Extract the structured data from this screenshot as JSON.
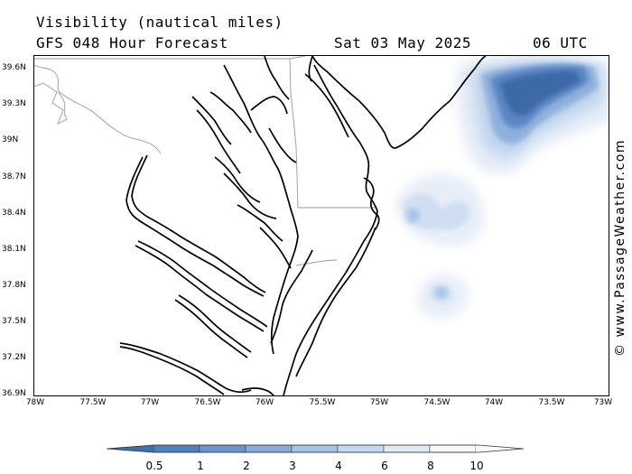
{
  "header": {
    "title": "Visibility (nautical miles)",
    "subtitle": "GFS 048 Hour Forecast",
    "date": "Sat 03 May 2025",
    "time": "06 UTC"
  },
  "credit": "© www.PassageWeather.com",
  "axes": {
    "lat_labels": [
      "39.6N",
      "39.3N",
      "39N",
      "38.7N",
      "38.4N",
      "38.1N",
      "37.8N",
      "37.5N",
      "37.2N",
      "36.9N"
    ],
    "lon_labels": [
      "78W",
      "77.5W",
      "77W",
      "76.5W",
      "76W",
      "75.5W",
      "75W",
      "74.5W",
      "74W",
      "73.5W",
      "73W"
    ]
  },
  "colorbar": {
    "labels": [
      "0.5",
      "1",
      "2",
      "3",
      "4",
      "6",
      "8",
      "10"
    ],
    "colors": [
      "#3f6fae",
      "#4f7fbf",
      "#6a96cf",
      "#88acdb",
      "#a6c2e6",
      "#c6d8ef",
      "#e1eaf6",
      "#f6f9fd"
    ]
  },
  "colors": {
    "coast": "#000000",
    "borders": "#999999"
  }
}
